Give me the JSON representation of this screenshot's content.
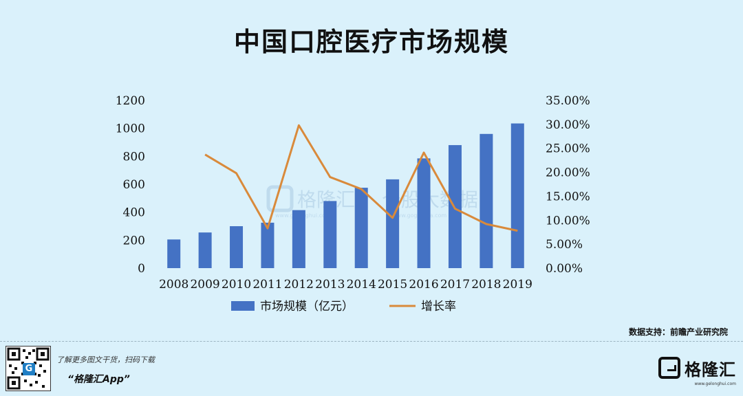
{
  "title": "中国口腔医疗市场规模",
  "source": "数据支持：前瞻产业研究院",
  "footer": {
    "tagline": "了解更多图文干货，扫码下载",
    "app_name": "“格隆汇App”",
    "brand_name": "格隆汇",
    "brand_url": "www.gelonghui.com",
    "qr_badge": "G"
  },
  "watermark": {
    "text1": "格隆汇",
    "text2": "个股大数据",
    "url1": "www.gelonghui.com",
    "url2": "www.gogudata.com"
  },
  "chart_data": {
    "type": "bar",
    "categories": [
      "2008",
      "2009",
      "2010",
      "2011",
      "2012",
      "2013",
      "2014",
      "2015",
      "2016",
      "2017",
      "2018",
      "2019"
    ],
    "series": [
      {
        "name": "市场规模（亿元）",
        "type": "bar",
        "axis": "left",
        "color": "#4472c4",
        "values": [
          205,
          255,
          300,
          325,
          415,
          480,
          575,
          635,
          785,
          880,
          960,
          1035
        ]
      },
      {
        "name": "增长率",
        "type": "line",
        "axis": "right",
        "color": "#d98a3b",
        "values": [
          null,
          0.237,
          0.198,
          0.083,
          0.298,
          0.19,
          0.165,
          0.105,
          0.241,
          0.124,
          0.092,
          0.078
        ]
      }
    ],
    "y_left": {
      "min": 0,
      "max": 1200,
      "ticks": [
        "0",
        "200",
        "400",
        "600",
        "800",
        "1000",
        "1200"
      ]
    },
    "y_right": {
      "min": 0,
      "max": 0.35,
      "ticks": [
        "0.00%",
        "5.00%",
        "10.00%",
        "15.00%",
        "20.00%",
        "25.00%",
        "30.00%",
        "35.00%"
      ]
    },
    "legend_position": "bottom",
    "grid": false
  }
}
